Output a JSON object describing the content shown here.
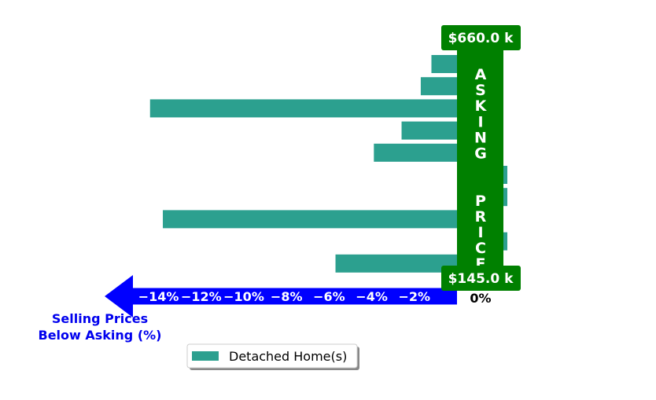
{
  "chart_data": {
    "type": "bar",
    "orientation": "horizontal",
    "series": [
      {
        "name": "Detached Home(s)",
        "color": "#2ca08f",
        "values": [
          -1.2,
          -1.7,
          -14.4,
          -2.6,
          -3.9,
          0.1,
          0.1,
          -13.8,
          0.1,
          -5.7
        ]
      }
    ],
    "xlim": [
      -16.5,
      1.2
    ],
    "xticks": [
      -14,
      -12,
      -10,
      -8,
      -6,
      -4,
      -2
    ],
    "xtick_labels": [
      "−14%",
      "−12%",
      "−10%",
      "−8%",
      "−6%",
      "−4%",
      "−2%"
    ],
    "zero_label": "0%",
    "xlabel": "Selling Prices\nBelow Asking (%)",
    "asking_price_label": "ASKING  PRICE",
    "top_price": "$660.0 k",
    "bottom_price": "$145.0 k",
    "legend": {
      "entries": [
        "Detached Home(s)"
      ],
      "placement": "bottom-center"
    },
    "colors": {
      "axis": "#0000ff",
      "asking": "#008000",
      "bar": "#2ca08f"
    },
    "grid": false
  }
}
